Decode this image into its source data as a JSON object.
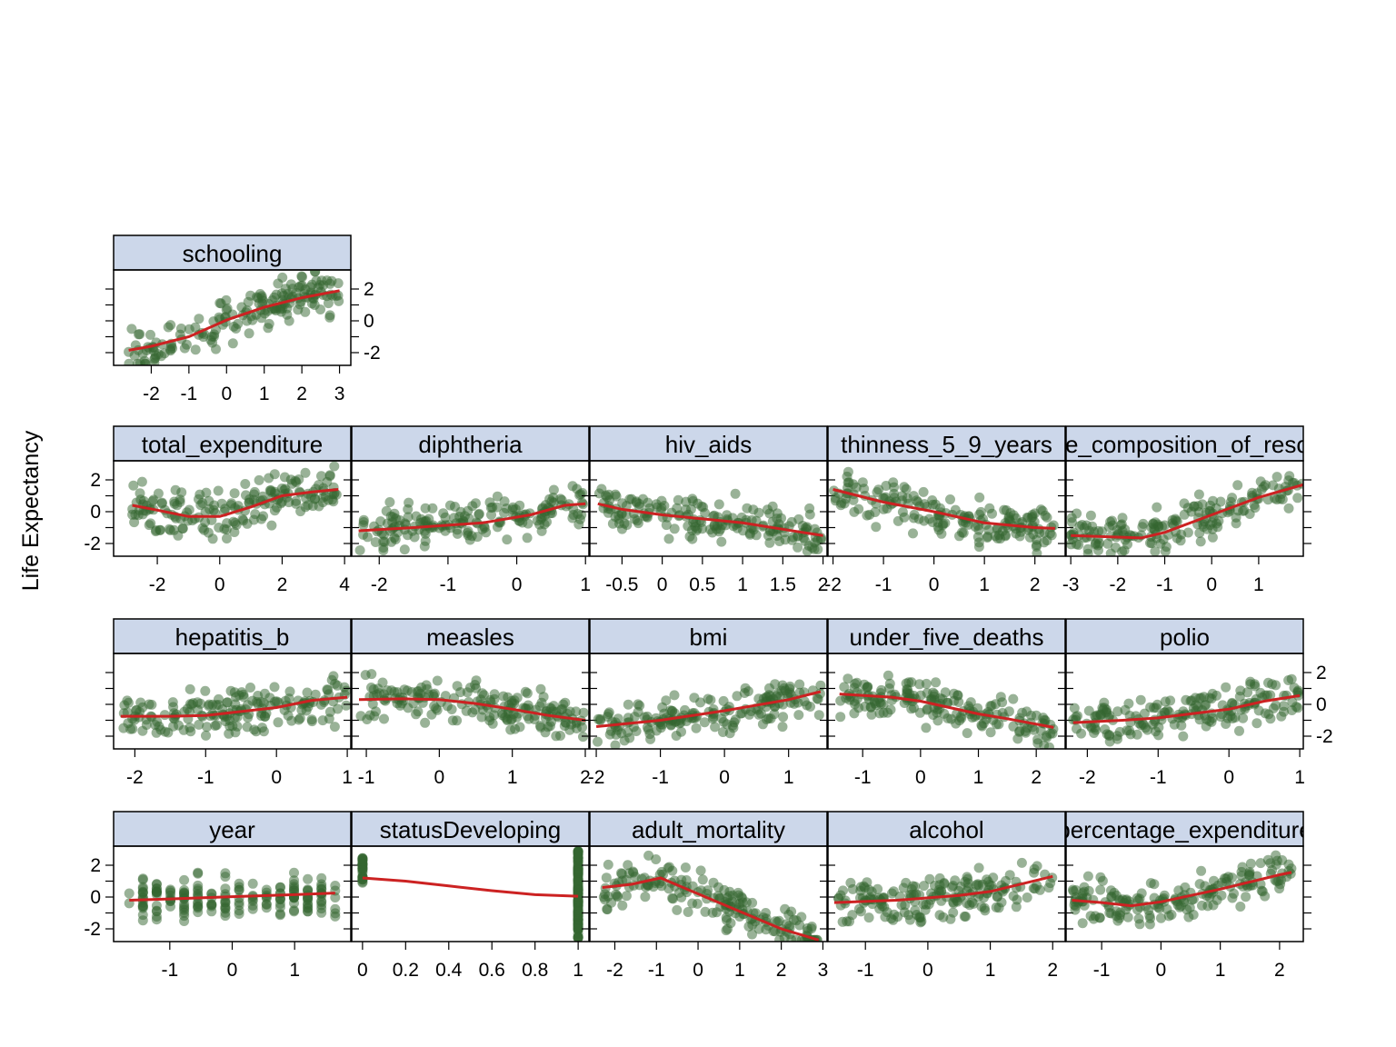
{
  "chart_data": {
    "type": "scatter",
    "ylabel": "Life Expectancy",
    "colors": {
      "points": "#33662f",
      "smooth": "#cc2222",
      "strip": "#ccd7ea"
    },
    "panels": [
      {
        "name": "schooling",
        "x_ticks": [
          -2,
          -1,
          0,
          1,
          2,
          3
        ],
        "x_range": [
          -3.0,
          3.3
        ],
        "y_ticks": [
          -2,
          0,
          2
        ],
        "smooth": [
          [
            -2.6,
            -1.85
          ],
          [
            -2,
            -1.6
          ],
          [
            -1,
            -1.0
          ],
          [
            0,
            0.05
          ],
          [
            1,
            0.85
          ],
          [
            2,
            1.45
          ],
          [
            3,
            1.9
          ]
        ]
      },
      {
        "name": "total_expenditure",
        "x_ticks": [
          -2,
          0,
          2,
          4
        ],
        "x_range": [
          -3.4,
          4.2
        ],
        "y_ticks": [
          -2,
          0,
          2
        ],
        "smooth": [
          [
            -2.8,
            0.4
          ],
          [
            -2,
            0.1
          ],
          [
            -1,
            -0.3
          ],
          [
            0,
            -0.3
          ],
          [
            1,
            0.3
          ],
          [
            2,
            1.0
          ],
          [
            3,
            1.25
          ],
          [
            3.8,
            1.4
          ]
        ]
      },
      {
        "name": "diphtheria",
        "x_ticks": [
          -2,
          -1,
          0,
          1
        ],
        "x_range": [
          -2.4,
          1.05
        ],
        "y_ticks": [
          -2,
          0,
          2
        ],
        "smooth": [
          [
            -2.3,
            -1.2
          ],
          [
            -1.5,
            -1.0
          ],
          [
            -0.5,
            -0.7
          ],
          [
            0.2,
            -0.2
          ],
          [
            0.7,
            0.4
          ],
          [
            1.0,
            0.5
          ]
        ]
      },
      {
        "name": "hiv_aids",
        "x_ticks": [
          -0.5,
          0.0,
          0.5,
          1.0,
          1.5,
          2.0
        ],
        "x_range": [
          -0.9,
          2.05
        ],
        "y_ticks": [
          -2,
          0,
          2
        ],
        "smooth": [
          [
            -0.8,
            0.5
          ],
          [
            -0.5,
            0.15
          ],
          [
            0,
            -0.2
          ],
          [
            0.5,
            -0.45
          ],
          [
            1.0,
            -0.7
          ],
          [
            1.5,
            -1.1
          ],
          [
            2.0,
            -1.5
          ]
        ]
      },
      {
        "name": "thinness_5_9_years",
        "x_ticks": [
          -2,
          -1,
          0,
          1,
          2
        ],
        "x_range": [
          -2.1,
          2.6
        ],
        "y_ticks": [
          -2,
          0,
          2
        ],
        "smooth": [
          [
            -2,
            1.4
          ],
          [
            -1.5,
            1.0
          ],
          [
            -1,
            0.6
          ],
          [
            0,
            0
          ],
          [
            1,
            -0.7
          ],
          [
            2,
            -1.0
          ],
          [
            2.4,
            -1.05
          ]
        ]
      },
      {
        "name": "income_composition_of_resources",
        "x_ticks": [
          -3,
          -2,
          -1,
          0,
          1
        ],
        "x_range": [
          -3.1,
          1.95
        ],
        "y_ticks": [
          -2,
          0,
          2
        ],
        "smooth": [
          [
            -3,
            -1.5
          ],
          [
            -2,
            -1.6
          ],
          [
            -1.5,
            -1.65
          ],
          [
            -1,
            -1.3
          ],
          [
            0,
            -0.2
          ],
          [
            1,
            0.9
          ],
          [
            1.95,
            1.7
          ]
        ]
      },
      {
        "name": "hepatitis_b",
        "x_ticks": [
          -2,
          -1,
          0,
          1
        ],
        "x_range": [
          -2.3,
          1.05
        ],
        "y_ticks": [
          -2,
          0,
          2
        ],
        "smooth": [
          [
            -2.2,
            -0.75
          ],
          [
            -1.5,
            -0.75
          ],
          [
            -1,
            -0.7
          ],
          [
            0,
            -0.2
          ],
          [
            0.5,
            0.25
          ],
          [
            1,
            0.45
          ]
        ]
      },
      {
        "name": "measles",
        "x_ticks": [
          -1,
          0,
          1,
          2
        ],
        "x_range": [
          -1.2,
          2.05
        ],
        "y_ticks": [
          -2,
          0,
          2
        ],
        "smooth": [
          [
            -1.1,
            0.3
          ],
          [
            -0.5,
            0.35
          ],
          [
            0,
            0.3
          ],
          [
            0.5,
            0.05
          ],
          [
            1,
            -0.3
          ],
          [
            1.5,
            -0.7
          ],
          [
            2.0,
            -1.0
          ]
        ]
      },
      {
        "name": "bmi",
        "x_ticks": [
          -2,
          -1,
          0,
          1
        ],
        "x_range": [
          -2.1,
          1.6
        ],
        "y_ticks": [
          -2,
          0,
          2
        ],
        "smooth": [
          [
            -2,
            -1.4
          ],
          [
            -1,
            -1.0
          ],
          [
            0,
            -0.4
          ],
          [
            1,
            0.3
          ],
          [
            1.5,
            0.8
          ]
        ]
      },
      {
        "name": "under_five_deaths",
        "x_ticks": [
          -1,
          0,
          1,
          2
        ],
        "x_range": [
          -1.6,
          2.5
        ],
        "y_ticks": [
          -2,
          0,
          2
        ],
        "smooth": [
          [
            -1.4,
            0.65
          ],
          [
            -0.5,
            0.45
          ],
          [
            0,
            0.2
          ],
          [
            0.5,
            -0.2
          ],
          [
            1,
            -0.6
          ],
          [
            1.5,
            -0.9
          ],
          [
            2.3,
            -1.45
          ]
        ]
      },
      {
        "name": "polio",
        "x_ticks": [
          -2,
          -1,
          0,
          1
        ],
        "x_range": [
          -2.3,
          1.05
        ],
        "y_ticks": [
          -2,
          0,
          2
        ],
        "smooth": [
          [
            -2.2,
            -1.15
          ],
          [
            -1.5,
            -1.0
          ],
          [
            -1,
            -0.85
          ],
          [
            0,
            -0.3
          ],
          [
            0.5,
            0.2
          ],
          [
            1,
            0.55
          ]
        ]
      },
      {
        "name": "year",
        "x_ticks": [
          -1,
          0,
          1
        ],
        "x_range": [
          -1.9,
          1.9
        ],
        "y_ticks": [
          -2,
          0,
          2
        ],
        "smooth": [
          [
            -1.65,
            -0.2
          ],
          [
            -1,
            -0.12
          ],
          [
            0,
            0.02
          ],
          [
            1,
            0.15
          ],
          [
            1.65,
            0.25
          ]
        ]
      },
      {
        "name": "statusDeveloping",
        "x_ticks": [
          0.0,
          0.2,
          0.4,
          0.6,
          0.8,
          1.0
        ],
        "x_range": [
          -0.05,
          1.05
        ],
        "y_ticks": [
          -2,
          0,
          2
        ],
        "smooth": [
          [
            0,
            1.2
          ],
          [
            0.2,
            1.0
          ],
          [
            0.4,
            0.7
          ],
          [
            0.6,
            0.4
          ],
          [
            0.8,
            0.15
          ],
          [
            1.0,
            0.05
          ]
        ]
      },
      {
        "name": "adult_mortality",
        "x_ticks": [
          -2,
          -1,
          0,
          1,
          2,
          3
        ],
        "x_range": [
          -2.6,
          3.1
        ],
        "y_ticks": [
          -2,
          0,
          2
        ],
        "smooth": [
          [
            -2.3,
            0.6
          ],
          [
            -1.6,
            0.8
          ],
          [
            -0.9,
            1.2
          ],
          [
            0,
            0.2
          ],
          [
            1,
            -0.9
          ],
          [
            2,
            -2.0
          ],
          [
            2.9,
            -2.7
          ]
        ]
      },
      {
        "name": "alcohol",
        "x_ticks": [
          -1,
          0,
          1,
          2
        ],
        "x_range": [
          -1.6,
          2.2
        ],
        "y_ticks": [
          -2,
          0,
          2
        ],
        "smooth": [
          [
            -1.5,
            -0.35
          ],
          [
            -0.5,
            -0.2
          ],
          [
            0.5,
            0.1
          ],
          [
            1,
            0.35
          ],
          [
            2,
            1.3
          ]
        ]
      },
      {
        "name": "percentage_expenditure",
        "x_ticks": [
          -1,
          0,
          1,
          2
        ],
        "x_range": [
          -1.6,
          2.4
        ],
        "y_ticks": [
          -2,
          0,
          2
        ],
        "smooth": [
          [
            -1.5,
            -0.2
          ],
          [
            -1,
            -0.35
          ],
          [
            -0.5,
            -0.55
          ],
          [
            0,
            -0.3
          ],
          [
            1,
            0.5
          ],
          [
            2,
            1.4
          ],
          [
            2.2,
            1.55
          ]
        ]
      }
    ]
  }
}
